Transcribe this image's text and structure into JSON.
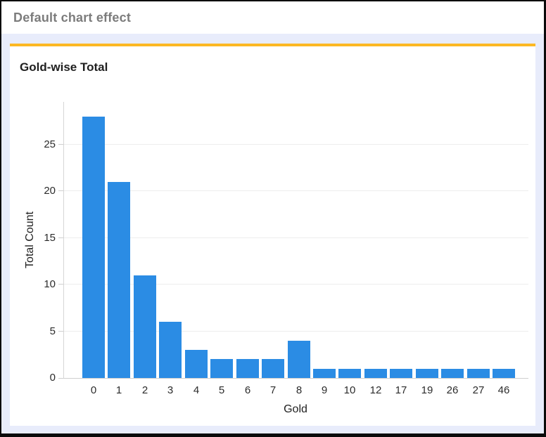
{
  "window": {
    "header_title": "Default chart effect"
  },
  "chart_data": {
    "type": "bar",
    "title": "Gold-wise Total",
    "xlabel": "Gold",
    "ylabel": "Total Count",
    "categories": [
      "0",
      "1",
      "2",
      "3",
      "4",
      "5",
      "6",
      "7",
      "8",
      "9",
      "10",
      "12",
      "17",
      "19",
      "26",
      "27",
      "46"
    ],
    "values": [
      28,
      21,
      11,
      6,
      3,
      2,
      2,
      2,
      4,
      1,
      1,
      1,
      1,
      1,
      1,
      1,
      1
    ],
    "yticks": [
      0,
      5,
      10,
      15,
      20,
      25
    ],
    "ylim": [
      0,
      29.6
    ],
    "grid": "horizontal",
    "legend": "none",
    "bar_color": "#2b8ce4"
  },
  "colors": {
    "accent_orange": "#fcb823",
    "page_background": "#e8ecfb",
    "header_text": "#7c7c7c",
    "bar_blue": "#2b8ce4",
    "gridline": "#ededed",
    "axis_line": "#cfcfcf"
  }
}
